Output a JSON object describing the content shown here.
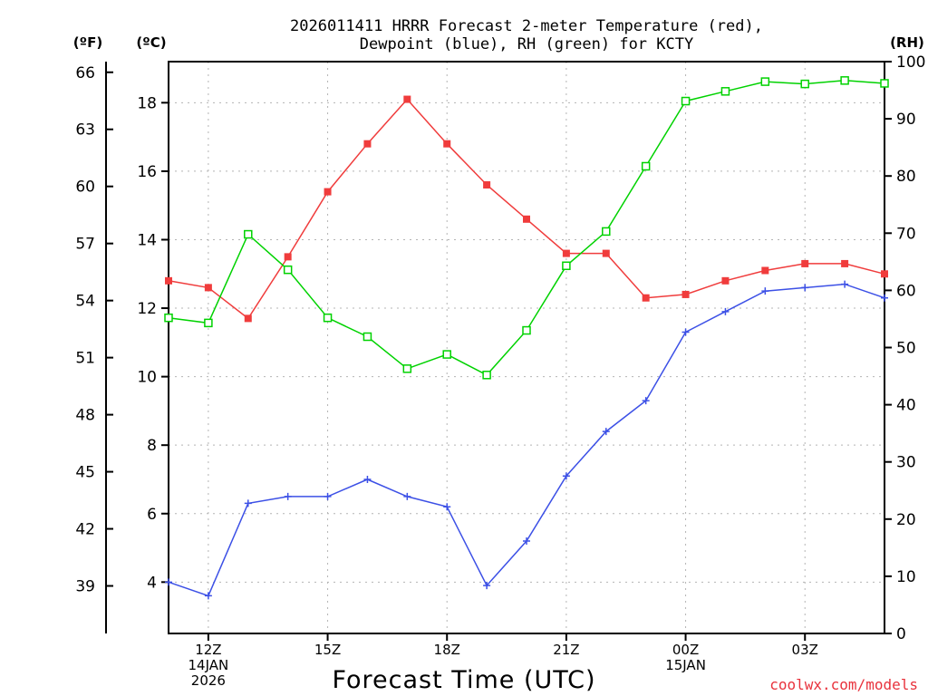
{
  "chart_data": {
    "type": "line",
    "title_line1": "2026011411 HRRR Forecast 2-meter Temperature (red),",
    "title_line2": "Dewpoint (blue), RH (green) for KCTY",
    "xlabel": "Forecast Time (UTC)",
    "credit": "coolwx.com/models",
    "unit_labels": {
      "fahrenheit": "(ºF)",
      "celsius": "(ºC)",
      "rh": "(RH)"
    },
    "x_hours": [
      11,
      12,
      13,
      14,
      15,
      16,
      17,
      18,
      19,
      20,
      21,
      22,
      23,
      24,
      25,
      26,
      27,
      28,
      29
    ],
    "x_range": [
      11,
      29
    ],
    "x_ticks": [
      {
        "hour": 12,
        "lines": [
          "12Z",
          "14JAN",
          "2026"
        ]
      },
      {
        "hour": 15,
        "lines": [
          "15Z"
        ]
      },
      {
        "hour": 18,
        "lines": [
          "18Z"
        ]
      },
      {
        "hour": 21,
        "lines": [
          "21Z"
        ]
      },
      {
        "hour": 24,
        "lines": [
          "00Z",
          "15JAN"
        ]
      },
      {
        "hour": 27,
        "lines": [
          "03Z"
        ]
      }
    ],
    "celsius_axis": {
      "range": [
        2.5,
        19.2
      ],
      "ticks": [
        "4",
        "6",
        "8",
        "10",
        "12",
        "14",
        "16",
        "18"
      ]
    },
    "fahrenheit_axis": {
      "range": [
        36.5,
        66.56
      ],
      "ticks": [
        "39",
        "42",
        "45",
        "48",
        "51",
        "54",
        "57",
        "60",
        "63",
        "66"
      ]
    },
    "rh_axis": {
      "range": [
        0,
        100
      ],
      "ticks": [
        "0",
        "10",
        "20",
        "30",
        "40",
        "50",
        "60",
        "70",
        "80",
        "90",
        "100"
      ]
    },
    "series": [
      {
        "name": "Temperature",
        "axis": "celsius",
        "color": "#f03c3c",
        "marker": "filled-square",
        "values": [
          12.8,
          12.6,
          11.7,
          13.5,
          15.4,
          16.8,
          18.1,
          16.8,
          15.6,
          14.6,
          13.6,
          13.6,
          12.3,
          12.4,
          12.8,
          13.1,
          13.3,
          13.3,
          13.0
        ]
      },
      {
        "name": "Dewpoint",
        "axis": "celsius",
        "color": "#3c50e6",
        "marker": "plus",
        "values": [
          4.0,
          3.6,
          6.3,
          6.5,
          6.5,
          7.0,
          6.5,
          6.2,
          3.9,
          5.2,
          7.1,
          8.4,
          9.3,
          11.3,
          11.9,
          12.5,
          12.6,
          12.7,
          12.3
        ]
      },
      {
        "name": "RH",
        "axis": "rh",
        "color": "#00d200",
        "marker": "open-square",
        "values": [
          55.2,
          54.3,
          69.8,
          63.6,
          55.2,
          51.9,
          46.3,
          48.8,
          45.2,
          53.0,
          64.3,
          70.3,
          81.7,
          93.1,
          94.8,
          96.5,
          96.1,
          96.7,
          96.2
        ]
      }
    ]
  }
}
